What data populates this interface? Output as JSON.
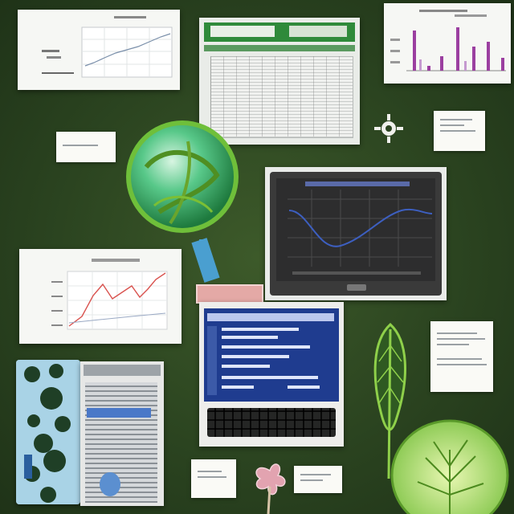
{
  "colors": {
    "background": "#2b4420",
    "screen_blue": "#1f3c8f",
    "chart_line": "#3d5fc0",
    "chart_red": "#d9534f",
    "bar_purple": "#9b3fa0",
    "leaf_green": "#7cc243",
    "globe_green": "#3fbf6b"
  },
  "icons": [
    "globe-icon",
    "leaf-icon",
    "tree-disc-icon",
    "flower-icon",
    "gear-icon",
    "keyboard-icon"
  ],
  "charts": [
    {
      "kind": "line",
      "series_trend": "rising"
    },
    {
      "kind": "bar",
      "bar_count": 9
    },
    {
      "kind": "line",
      "series_trend": "wave"
    },
    {
      "kind": "line",
      "series_trend": "rising-peaks"
    }
  ]
}
